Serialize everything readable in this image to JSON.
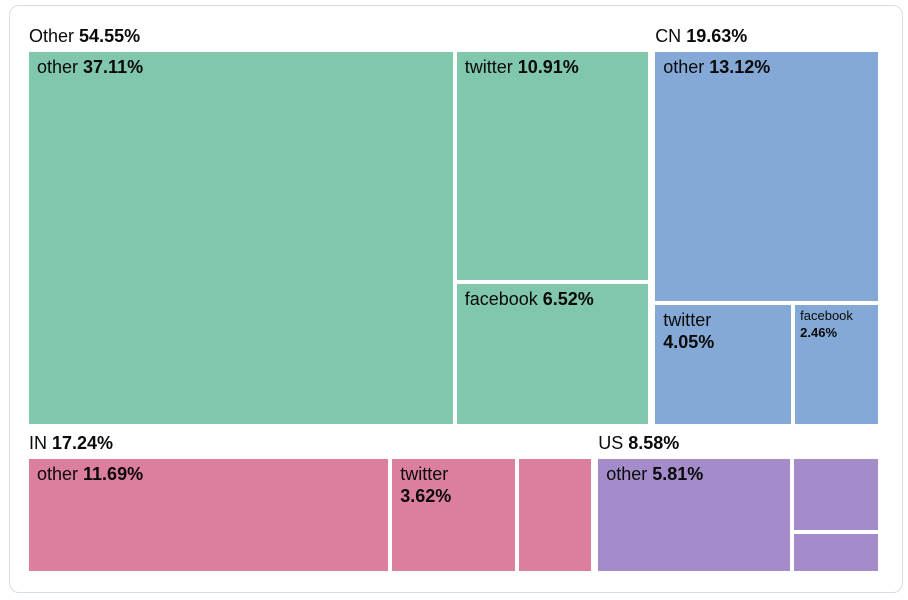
{
  "colors": {
    "background": "#ffffff",
    "card_border": "#d6dde8",
    "text": "#0a0a0a",
    "group_other": "#81c7ac",
    "group_cn": "#84a9d6",
    "group_in": "#dc7f9e",
    "group_us": "#a48cca"
  },
  "chart_data": {
    "type": "treemap",
    "title": "",
    "unit": "%",
    "legend": "none",
    "rows": [
      [
        "Other",
        "CN"
      ],
      [
        "IN",
        "US"
      ]
    ],
    "groups": [
      {
        "name": "Other",
        "pct": "54.55%",
        "value": 54.55,
        "color": "#81c7ac",
        "layout": "big-left",
        "children": [
          {
            "label": "other",
            "pct": "37.11%",
            "value": 37.11
          },
          {
            "label": "twitter",
            "pct": "10.91%",
            "value": 10.91
          },
          {
            "label": "facebook",
            "pct": "6.52%",
            "value": 6.52
          }
        ]
      },
      {
        "name": "CN",
        "pct": "19.63%",
        "value": 19.63,
        "color": "#84a9d6",
        "layout": "big-top",
        "children": [
          {
            "label": "other",
            "pct": "13.12%",
            "value": 13.12
          },
          {
            "label": "twitter",
            "pct": "4.05%",
            "value": 4.05
          },
          {
            "label": "facebook",
            "pct": "2.46%",
            "value": 2.46
          }
        ]
      },
      {
        "name": "IN",
        "pct": "17.24%",
        "value": 17.24,
        "color": "#dc7f9e",
        "layout": "row",
        "children": [
          {
            "label": "other",
            "pct": "11.69%",
            "value": 11.69
          },
          {
            "label": "twitter",
            "pct": "3.62%",
            "value": 3.62
          },
          {
            "label": "",
            "pct": "",
            "value": 1.93
          }
        ]
      },
      {
        "name": "US",
        "pct": "8.58%",
        "value": 8.58,
        "color": "#a48cca",
        "layout": "big-left",
        "children": [
          {
            "label": "other",
            "pct": "5.81%",
            "value": 5.81
          },
          {
            "label": "",
            "pct": "",
            "value": 1.93
          },
          {
            "label": "",
            "pct": "",
            "value": 0.84
          }
        ]
      }
    ]
  }
}
